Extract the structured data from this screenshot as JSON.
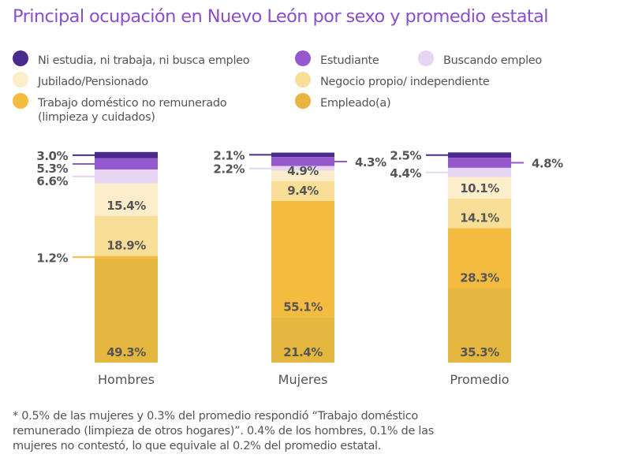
{
  "chart_data": {
    "type": "bar",
    "stacked": true,
    "title": "Principal ocupación en Nuevo León por sexo y promedio estatal",
    "categories": [
      "Hombres",
      "Mujeres",
      "Promedio"
    ],
    "unit": "%",
    "series": [
      {
        "name": "Ni estudia, ni trabaja, ni busca empleo",
        "color": "#4A2A8C",
        "values": [
          3.0,
          2.1,
          2.5
        ],
        "label_side": [
          "left",
          "left",
          "left"
        ]
      },
      {
        "name": "Estudiante",
        "color": "#9559CD",
        "values": [
          5.3,
          4.3,
          4.8
        ],
        "label_side": [
          "left",
          "right",
          "right"
        ]
      },
      {
        "name": "Buscando empleo",
        "color": "#E7D6F3",
        "values": [
          6.6,
          2.2,
          4.4
        ],
        "label_side": [
          "left",
          "left",
          "left"
        ]
      },
      {
        "name": "Jubilado/Pensionado",
        "color": "#FDEECB",
        "values": [
          15.4,
          4.9,
          10.1
        ],
        "label_side": [
          "inside",
          "inside",
          "inside"
        ]
      },
      {
        "name": "Negocio propio/ independiente",
        "color": "#F9DE98",
        "values": [
          18.9,
          9.4,
          14.1
        ],
        "label_side": [
          "inside",
          "inside",
          "inside"
        ]
      },
      {
        "name": "Trabajo doméstico no remunerado (limpieza y cuidados)",
        "color": "#F4BB41",
        "values": [
          1.2,
          55.1,
          28.3
        ],
        "label_side": [
          "left",
          "inside",
          "inside"
        ]
      },
      {
        "name": "Empleado(a)",
        "color": "#E5B73E",
        "values": [
          49.3,
          21.4,
          35.3
        ],
        "label_side": [
          "inside",
          "inside",
          "inside"
        ]
      }
    ],
    "legend": {
      "placement": "top",
      "items": [
        {
          "lines": [
            "Ni estudia, ni trabaja, ni busca empleo"
          ],
          "color": "#4A2A8C"
        },
        {
          "lines": [
            "Estudiante"
          ],
          "color": "#9559CD"
        },
        {
          "lines": [
            "Buscando empleo"
          ],
          "color": "#E7D6F3"
        },
        {
          "lines": [
            "Jubilado/Pensionado"
          ],
          "color": "#FDEECB"
        },
        {
          "lines": [
            "Negocio propio/ independiente"
          ],
          "color": "#F9DE98"
        },
        {
          "lines": [
            "Trabajo doméstico no remunerado",
            "(limpieza y cuidados)"
          ],
          "color": "#F4BB41"
        },
        {
          "lines": [
            "Empleado(a)"
          ],
          "color": "#E5B73E"
        }
      ]
    },
    "grid": false,
    "ylim": [
      0,
      100
    ]
  },
  "footnote": [
    "* 0.5% de las mujeres y 0.3% del promedio respondió “Trabajo doméstico",
    "remunerado (limpieza de otros hogares)”. 0.4% de los hombres, 0.1% de las",
    "mujeres no contestó, lo que equivale al 0.2% del promedio estatal."
  ],
  "colors": {
    "title": "#8B4FCB",
    "text": "#555555"
  }
}
